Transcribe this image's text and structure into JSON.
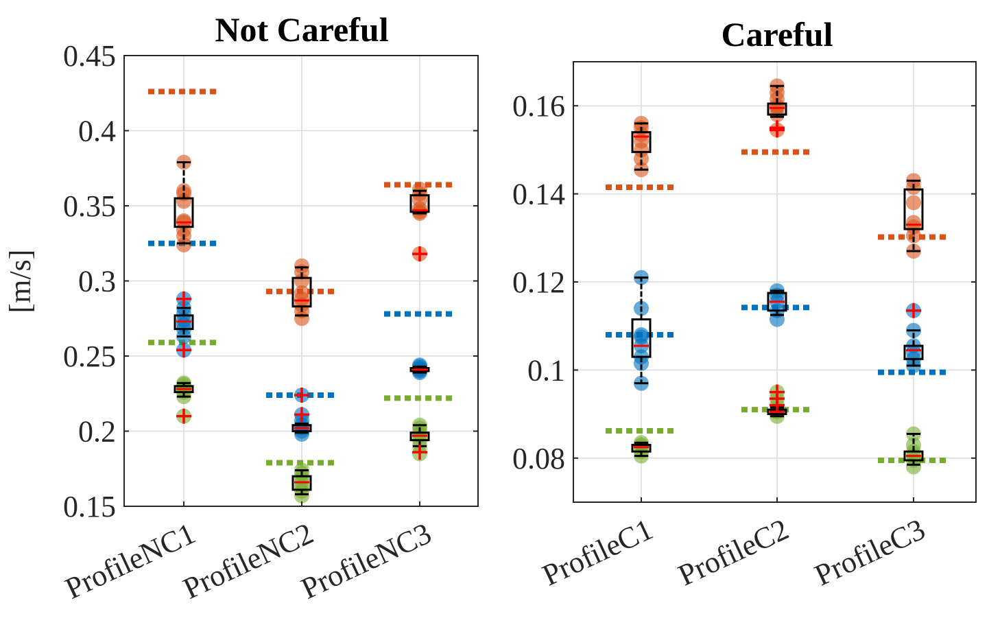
{
  "chart_data": [
    {
      "type": "box",
      "title": "Not Careful",
      "ylabel": "[m/s]",
      "ylim": [
        0.15,
        0.45
      ],
      "yticks": [
        0.15,
        0.2,
        0.25,
        0.3,
        0.35,
        0.4,
        0.45
      ],
      "ytick_labels": [
        "0.15",
        "0.2",
        "0.25",
        "0.3",
        "0.35",
        "0.4",
        "0.45"
      ],
      "grid": true,
      "categories": [
        "ProfileNC1",
        "ProfileNC2",
        "ProfileNC3"
      ],
      "series_colors": {
        "orange": "#D95319",
        "blue": "#0072BD",
        "green": "#77AC30"
      },
      "boxes": [
        {
          "category": 0,
          "series": "orange",
          "q1": 0.336,
          "median": 0.339,
          "q3": 0.355,
          "wlow": 0.325,
          "whigh": 0.379,
          "outliers": [],
          "points": [
            0.324,
            0.33,
            0.334,
            0.339,
            0.34,
            0.353,
            0.358,
            0.36,
            0.379
          ]
        },
        {
          "category": 0,
          "series": "blue",
          "q1": 0.268,
          "median": 0.273,
          "q3": 0.277,
          "wlow": 0.263,
          "whigh": 0.282,
          "outliers": [
            0.288,
            0.254
          ],
          "points": [
            0.254,
            0.263,
            0.268,
            0.271,
            0.274,
            0.278,
            0.282,
            0.288
          ]
        },
        {
          "category": 0,
          "series": "green",
          "q1": 0.226,
          "median": 0.228,
          "q3": 0.23,
          "wlow": 0.223,
          "whigh": 0.232,
          "outliers": [
            0.21
          ],
          "points": [
            0.21,
            0.223,
            0.226,
            0.228,
            0.229,
            0.231,
            0.232
          ]
        },
        {
          "category": 1,
          "series": "orange",
          "q1": 0.283,
          "median": 0.287,
          "q3": 0.302,
          "wlow": 0.277,
          "whigh": 0.309,
          "outliers": [],
          "points": [
            0.275,
            0.28,
            0.284,
            0.288,
            0.292,
            0.3,
            0.306,
            0.31
          ]
        },
        {
          "category": 1,
          "series": "blue",
          "q1": 0.2,
          "median": 0.202,
          "q3": 0.204,
          "wlow": 0.199,
          "whigh": 0.205,
          "outliers": [
            0.224,
            0.211
          ],
          "points": [
            0.198,
            0.2,
            0.202,
            0.204,
            0.207,
            0.211,
            0.224
          ]
        },
        {
          "category": 1,
          "series": "green",
          "q1": 0.161,
          "median": 0.166,
          "q3": 0.17,
          "wlow": 0.158,
          "whigh": 0.174,
          "outliers": [],
          "points": [
            0.157,
            0.16,
            0.163,
            0.166,
            0.169,
            0.172,
            0.174
          ]
        },
        {
          "category": 2,
          "series": "orange",
          "q1": 0.346,
          "median": 0.347,
          "q3": 0.357,
          "wlow": 0.345,
          "whigh": 0.36,
          "outliers": [
            0.318
          ],
          "points": [
            0.318,
            0.345,
            0.346,
            0.348,
            0.354,
            0.358,
            0.361
          ]
        },
        {
          "category": 2,
          "series": "blue",
          "q1": 0.24,
          "median": 0.241,
          "q3": 0.242,
          "wlow": 0.239,
          "whigh": 0.243,
          "outliers": [],
          "points": [
            0.239,
            0.24,
            0.241,
            0.242,
            0.243,
            0.244
          ]
        },
        {
          "category": 2,
          "series": "green",
          "q1": 0.194,
          "median": 0.197,
          "q3": 0.199,
          "wlow": 0.19,
          "whigh": 0.204,
          "outliers": [
            0.186
          ],
          "points": [
            0.185,
            0.19,
            0.194,
            0.197,
            0.199,
            0.202,
            0.204
          ]
        }
      ],
      "reference_lines": [
        {
          "category": 0,
          "series": "orange",
          "value": 0.426
        },
        {
          "category": 0,
          "series": "blue",
          "value": 0.325
        },
        {
          "category": 0,
          "series": "green",
          "value": 0.259
        },
        {
          "category": 1,
          "series": "orange",
          "value": 0.293
        },
        {
          "category": 1,
          "series": "blue",
          "value": 0.224
        },
        {
          "category": 1,
          "series": "green",
          "value": 0.179
        },
        {
          "category": 2,
          "series": "orange",
          "value": 0.364
        },
        {
          "category": 2,
          "series": "blue",
          "value": 0.278
        },
        {
          "category": 2,
          "series": "green",
          "value": 0.222
        }
      ]
    },
    {
      "type": "box",
      "title": "Careful",
      "ylabel": "",
      "ylim": [
        0.07,
        0.17
      ],
      "yticks": [
        0.08,
        0.1,
        0.12,
        0.14,
        0.16
      ],
      "ytick_labels": [
        "0.08",
        "0.1",
        "0.12",
        "0.14",
        "0.16"
      ],
      "grid": true,
      "categories": [
        "ProfileC1",
        "ProfileC2",
        "ProfileC3"
      ],
      "series_colors": {
        "orange": "#D95319",
        "blue": "#0072BD",
        "green": "#77AC30"
      },
      "boxes": [
        {
          "category": 0,
          "series": "orange",
          "q1": 0.1495,
          "median": 0.153,
          "q3": 0.154,
          "wlow": 0.1455,
          "whigh": 0.156,
          "outliers": [],
          "points": [
            0.1455,
            0.148,
            0.15,
            0.152,
            0.1535,
            0.155,
            0.156
          ]
        },
        {
          "category": 0,
          "series": "blue",
          "q1": 0.103,
          "median": 0.1055,
          "q3": 0.1115,
          "wlow": 0.097,
          "whigh": 0.121,
          "outliers": [],
          "points": [
            0.097,
            0.1015,
            0.103,
            0.1055,
            0.1075,
            0.108,
            0.114,
            0.121
          ]
        },
        {
          "category": 0,
          "series": "green",
          "q1": 0.0815,
          "median": 0.0825,
          "q3": 0.083,
          "wlow": 0.0805,
          "whigh": 0.0835,
          "outliers": [],
          "points": [
            0.0805,
            0.0815,
            0.0825,
            0.083,
            0.0835
          ]
        },
        {
          "category": 1,
          "series": "orange",
          "q1": 0.158,
          "median": 0.1595,
          "q3": 0.1605,
          "wlow": 0.1575,
          "whigh": 0.1645,
          "outliers": [
            0.1545,
            0.155
          ],
          "points": [
            0.1545,
            0.158,
            0.1595,
            0.16,
            0.1615,
            0.163,
            0.1645
          ]
        },
        {
          "category": 1,
          "series": "blue",
          "q1": 0.1135,
          "median": 0.1155,
          "q3": 0.1175,
          "wlow": 0.1125,
          "whigh": 0.118,
          "outliers": [],
          "points": [
            0.1115,
            0.1135,
            0.1155,
            0.117,
            0.118
          ]
        },
        {
          "category": 1,
          "series": "green",
          "q1": 0.09,
          "median": 0.0905,
          "q3": 0.091,
          "wlow": 0.0895,
          "whigh": 0.0915,
          "outliers": [
            0.095,
            0.0935,
            0.092
          ],
          "points": [
            0.0895,
            0.0905,
            0.091,
            0.092,
            0.0935,
            0.095
          ]
        },
        {
          "category": 2,
          "series": "orange",
          "q1": 0.132,
          "median": 0.133,
          "q3": 0.141,
          "wlow": 0.127,
          "whigh": 0.143,
          "outliers": [],
          "points": [
            0.127,
            0.1305,
            0.1325,
            0.1335,
            0.138,
            0.1415,
            0.143
          ]
        },
        {
          "category": 2,
          "series": "blue",
          "q1": 0.1025,
          "median": 0.1045,
          "q3": 0.1055,
          "wlow": 0.101,
          "whigh": 0.109,
          "outliers": [
            0.1135
          ],
          "points": [
            0.101,
            0.1025,
            0.104,
            0.1055,
            0.109,
            0.1135
          ]
        },
        {
          "category": 2,
          "series": "green",
          "q1": 0.0795,
          "median": 0.0805,
          "q3": 0.0815,
          "wlow": 0.0785,
          "whigh": 0.0855,
          "outliers": [],
          "points": [
            0.078,
            0.0795,
            0.0805,
            0.0815,
            0.083,
            0.0855
          ]
        }
      ],
      "reference_lines": [
        {
          "category": 0,
          "series": "orange",
          "value": 0.1415
        },
        {
          "category": 0,
          "series": "blue",
          "value": 0.108
        },
        {
          "category": 0,
          "series": "green",
          "value": 0.0862
        },
        {
          "category": 1,
          "series": "orange",
          "value": 0.1495
        },
        {
          "category": 1,
          "series": "blue",
          "value": 0.1142
        },
        {
          "category": 1,
          "series": "green",
          "value": 0.091
        },
        {
          "category": 2,
          "series": "orange",
          "value": 0.1302
        },
        {
          "category": 2,
          "series": "blue",
          "value": 0.0995
        },
        {
          "category": 2,
          "series": "green",
          "value": 0.0795
        }
      ]
    }
  ]
}
